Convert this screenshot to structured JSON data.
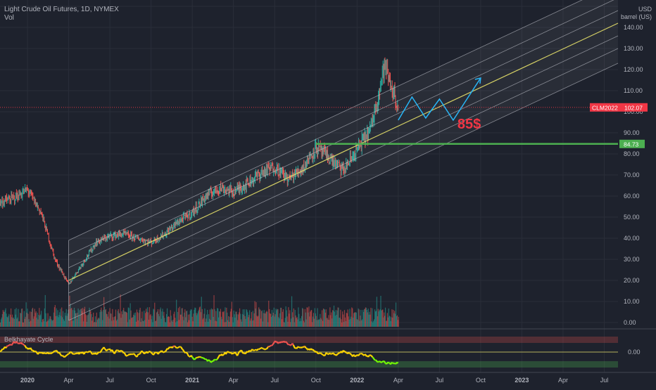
{
  "header": {
    "symbol_line": "Light Crude Oil Futures, 1D, NYMEX",
    "volume_label": "Vol"
  },
  "price_scale": {
    "currency": "USD",
    "unit": "barrel (US)",
    "ticks": [
      "150.00",
      "140.00",
      "130.00",
      "120.00",
      "110.00",
      "100.00",
      "90.00",
      "80.00",
      "70.00",
      "60.00",
      "50.00",
      "40.00",
      "30.00",
      "20.00",
      "10.00",
      "0.00"
    ],
    "current_symbol": "CLM2022",
    "current_price": "102.07",
    "level_label": "84.73"
  },
  "annotation": {
    "target_text": "85$"
  },
  "oscillator": {
    "title": "Belkhayate Cycle",
    "zero_label": "0.00"
  },
  "time_axis": {
    "labels": [
      "2020",
      "Apr",
      "Jul",
      "Oct",
      "2021",
      "Apr",
      "Jul",
      "Oct",
      "2022",
      "Apr",
      "Jul",
      "Oct",
      "2023",
      "Apr",
      "Jul"
    ]
  },
  "colors": {
    "background": "#1e222d",
    "up": "#26a69a",
    "down": "#ef5350",
    "channel_mid": "#e8e26a",
    "channel_lines": "#c9ccd4",
    "projection": "#29b6f6",
    "level_line": "#4caf50",
    "current_price": "#f23645",
    "annotation": "#f23645"
  },
  "chart_data": {
    "type": "line",
    "title": "Light Crude Oil Futures, 1D, NYMEX",
    "ylabel": "USD barrel (US)",
    "ylim": [
      -2,
      153
    ],
    "x_range": [
      "2019-11",
      "2023-08"
    ],
    "series": [
      {
        "name": "CLM2022",
        "x": [
          "2019-11",
          "2019-12",
          "2020-01",
          "2020-02",
          "2020-03",
          "2020-04",
          "2020-05",
          "2020-06",
          "2020-07",
          "2020-08",
          "2020-09",
          "2020-10",
          "2020-11",
          "2020-12",
          "2021-01",
          "2021-02",
          "2021-03",
          "2021-04",
          "2021-05",
          "2021-06",
          "2021-07",
          "2021-08",
          "2021-09",
          "2021-10",
          "2021-11",
          "2021-12",
          "2022-01",
          "2022-02",
          "2022-03",
          "2022-04"
        ],
        "values": [
          57,
          59,
          63,
          52,
          30,
          18,
          28,
          38,
          41,
          42,
          40,
          38,
          42,
          48,
          52,
          60,
          64,
          62,
          66,
          71,
          74,
          68,
          73,
          83,
          78,
          72,
          82,
          92,
          122,
          102
        ]
      }
    ],
    "projection_path": {
      "x": [
        "2022-04",
        "2022-05",
        "2022-06",
        "2022-07",
        "2022-08",
        "2022-09",
        "2022-10"
      ],
      "values": [
        96,
        107,
        97,
        106,
        96,
        106,
        116
      ]
    },
    "channel": {
      "start": {
        "x": "2020-04",
        "value": 20
      },
      "end": {
        "x": "2023-08",
        "value": 142
      },
      "band_offsets": [
        -19,
        -12,
        -6,
        0,
        6,
        12,
        19
      ]
    },
    "horizontal_level": 84.73,
    "current_price": 102.07,
    "oscillator_zero": 0
  }
}
